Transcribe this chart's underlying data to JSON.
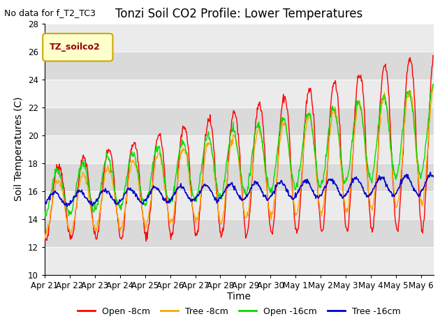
{
  "title": "Tonzi Soil CO2 Profile: Lower Temperatures",
  "no_data_note": "No data for f_T2_TC3",
  "ylabel": "Soil Temperatures (C)",
  "xlabel": "Time",
  "ylim": [
    10,
    28
  ],
  "yticks": [
    10,
    12,
    14,
    16,
    18,
    20,
    22,
    24,
    26,
    28
  ],
  "legend_box_label": "TZ_soilco2",
  "legend_box_bg": "#FFFFCC",
  "legend_box_border": "#CCAA00",
  "series_colors": {
    "open8": "#FF0000",
    "tree8": "#FFA500",
    "open16": "#00DD00",
    "tree16": "#0000CC"
  },
  "series_labels": {
    "open8": "Open -8cm",
    "tree8": "Tree -8cm",
    "open16": "Open -16cm",
    "tree16": "Tree -16cm"
  },
  "bg_color": "#FFFFFF",
  "plot_bg": "#E8E8E8",
  "band_light": "#EBEBEB",
  "band_dark": "#DADADA",
  "title_fontsize": 12,
  "axis_label_fontsize": 10,
  "tick_fontsize": 8.5,
  "note_fontsize": 9
}
